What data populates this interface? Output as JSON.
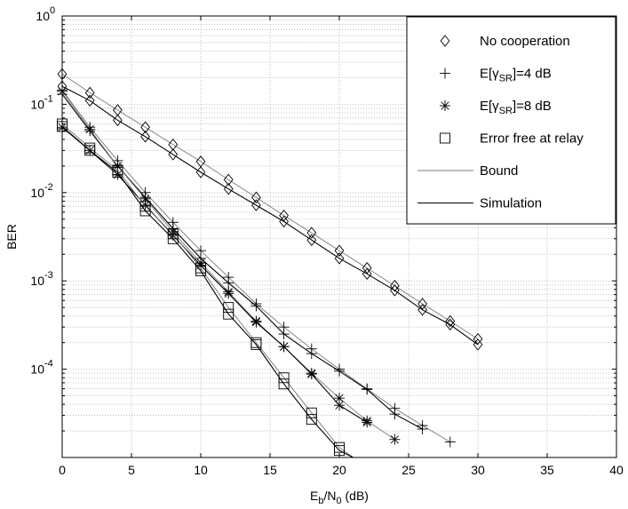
{
  "chart_data": {
    "type": "line",
    "xlabel": {
      "main": "E",
      "sub": "b",
      "sep": "/N",
      "sub2": "0",
      "tail": " (dB)"
    },
    "ylabel": "BER",
    "xlim": [
      0,
      40
    ],
    "ylim": [
      1e-05,
      1
    ],
    "yscale": "log",
    "grid": true,
    "legend_position": "top-right",
    "x_ticks": [
      "0",
      "5",
      "10",
      "15",
      "20",
      "25",
      "30",
      "35",
      "40"
    ],
    "y_ticks": [
      {
        "base": "10",
        "exp": "0"
      },
      {
        "base": "10",
        "exp": "-1"
      },
      {
        "base": "10",
        "exp": "-2"
      },
      {
        "base": "10",
        "exp": "-3"
      },
      {
        "base": "10",
        "exp": "-4"
      }
    ],
    "legend": [
      {
        "key": "noCoop",
        "marker": "diamond",
        "label": "No cooperation"
      },
      {
        "key": "sr4",
        "marker": "plus",
        "label": "E[γSR]=4 dB",
        "pre": "E[γ",
        "sub": "SR",
        "post": "]=4 dB"
      },
      {
        "key": "sr8",
        "marker": "star",
        "label": "E[γSR]=8 dB",
        "pre": "E[γ",
        "sub": "SR",
        "post": "]=8 dB"
      },
      {
        "key": "errFree",
        "marker": "square",
        "label": "Error free at relay"
      },
      {
        "key": "bound",
        "marker": "line-gray",
        "label": "Bound"
      },
      {
        "key": "sim",
        "marker": "line-black",
        "label": "Simulation"
      }
    ],
    "series": [
      {
        "group": "noCoop",
        "kind": "bound",
        "marker": "diamond",
        "x": [
          0,
          2,
          4,
          6,
          8,
          10,
          12,
          14,
          16,
          18,
          20,
          22,
          24,
          26,
          28,
          30
        ],
        "y": [
          0.22,
          0.135,
          0.086,
          0.055,
          0.035,
          0.0225,
          0.014,
          0.0088,
          0.0055,
          0.0035,
          0.0022,
          0.0014,
          0.00088,
          0.00055,
          0.00035,
          0.00022
        ]
      },
      {
        "group": "noCoop",
        "kind": "sim",
        "marker": "diamond",
        "x": [
          0,
          2,
          4,
          6,
          8,
          10,
          12,
          14,
          16,
          18,
          20,
          22,
          24,
          26,
          28,
          30
        ],
        "y": [
          0.16,
          0.11,
          0.066,
          0.043,
          0.027,
          0.017,
          0.011,
          0.0072,
          0.0047,
          0.0029,
          0.0018,
          0.0012,
          0.00078,
          0.00047,
          0.00032,
          0.00019
        ]
      },
      {
        "group": "sr4",
        "kind": "bound",
        "marker": "plus",
        "x": [
          0,
          2,
          4,
          6,
          8,
          10,
          12,
          14,
          16,
          18,
          20,
          22,
          24,
          26,
          28
        ],
        "y": [
          0.145,
          0.055,
          0.023,
          0.01,
          0.0046,
          0.0022,
          0.0011,
          0.00055,
          0.0003,
          0.00017,
          0.0001,
          6e-05,
          3.6e-05,
          2.3e-05,
          1.5e-05
        ]
      },
      {
        "group": "sr4",
        "kind": "sim",
        "marker": "plus",
        "x": [
          0,
          2,
          4,
          6,
          8,
          10,
          12,
          14,
          16,
          18,
          20,
          22,
          24,
          26
        ],
        "y": [
          0.13,
          0.05,
          0.02,
          0.0088,
          0.0039,
          0.0018,
          0.00095,
          0.00052,
          0.00025,
          0.00015,
          9.5e-05,
          5.9e-05,
          3.1e-05,
          2.1e-05
        ]
      },
      {
        "group": "sr8",
        "kind": "bound",
        "marker": "star",
        "x": [
          0,
          2,
          4,
          6,
          8,
          10,
          12,
          14,
          16,
          18,
          20,
          22,
          24
        ],
        "y": [
          0.14,
          0.052,
          0.02,
          0.0085,
          0.0036,
          0.0016,
          0.00075,
          0.00035,
          0.00018,
          9e-05,
          4.7e-05,
          2.6e-05,
          1.6e-05
        ]
      },
      {
        "group": "sr8",
        "kind": "sim",
        "marker": "star",
        "x": [
          0,
          2,
          4,
          6,
          8,
          10,
          12,
          14,
          16,
          18,
          20,
          22
        ],
        "y": [
          0.055,
          0.03,
          0.016,
          0.0072,
          0.0033,
          0.0015,
          0.00072,
          0.00034,
          0.00018,
          8.8e-05,
          3.9e-05,
          2.5e-05
        ]
      },
      {
        "group": "errFree",
        "kind": "bound",
        "marker": "square",
        "x": [
          0,
          2,
          4,
          6,
          8,
          10,
          12,
          14,
          16,
          18,
          20,
          21
        ],
        "y": [
          0.06,
          0.032,
          0.018,
          0.007,
          0.0034,
          0.0014,
          0.0005,
          0.0002,
          8e-05,
          3.2e-05,
          1.3e-05,
          1e-05
        ]
      },
      {
        "group": "errFree",
        "kind": "sim",
        "marker": "square",
        "x": [
          0,
          2,
          4,
          6,
          8,
          10,
          12,
          14,
          16,
          18,
          20,
          21
        ],
        "y": [
          0.056,
          0.03,
          0.017,
          0.0062,
          0.003,
          0.0013,
          0.00042,
          0.00019,
          6.8e-05,
          2.7e-05,
          1.2e-05,
          1e-05
        ]
      }
    ]
  }
}
